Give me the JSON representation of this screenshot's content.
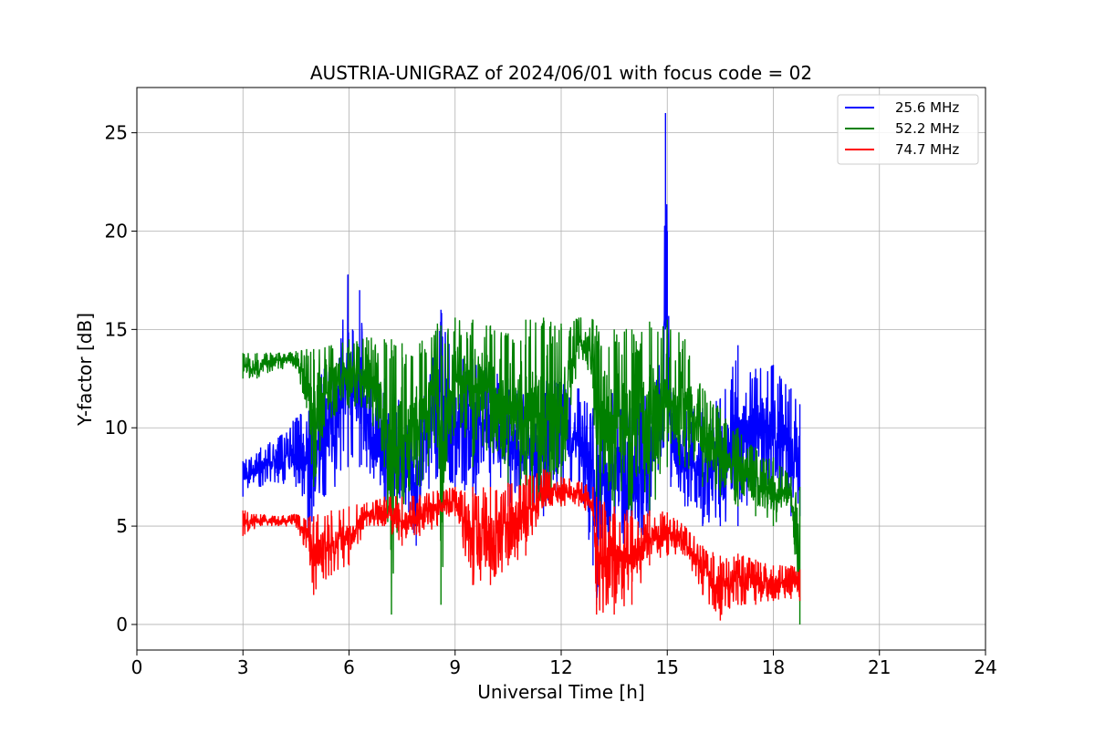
{
  "chart_data": {
    "type": "line",
    "title": "AUSTRIA-UNIGRAZ of 2024/06/01 with focus code = 02",
    "xlabel": "Universal Time [h]",
    "ylabel": "Y-factor [dB]",
    "xlim": [
      0,
      24
    ],
    "ylim": [
      -1.3,
      27.3
    ],
    "xticks": [
      0,
      3,
      6,
      9,
      12,
      15,
      18,
      21,
      24
    ],
    "yticks": [
      0,
      5,
      10,
      15,
      20,
      25
    ],
    "grid": true,
    "legend_position": "top-right",
    "series": [
      {
        "name": "25.6 MHz",
        "color": "#0000ff",
        "x": [
          3.0,
          3.5,
          4.0,
          4.5,
          4.9,
          5.0,
          5.3,
          5.6,
          5.97,
          6.1,
          6.3,
          6.5,
          7.0,
          7.5,
          7.9,
          8.0,
          8.5,
          8.6,
          9.0,
          9.5,
          10.0,
          10.5,
          11.0,
          11.5,
          12.0,
          12.5,
          12.9,
          13.0,
          13.5,
          14.0,
          14.5,
          14.9,
          14.95,
          15.0,
          15.1,
          15.5,
          16.0,
          16.5,
          17.0,
          17.5,
          18.0,
          18.5,
          18.75
        ],
        "low": [
          6.5,
          7.0,
          7.2,
          7.0,
          4.0,
          6.0,
          6.5,
          7.0,
          8.0,
          8.5,
          8.0,
          8.0,
          6.0,
          6.5,
          4.0,
          6.0,
          7.5,
          7.0,
          7.0,
          6.5,
          7.0,
          6.0,
          6.0,
          5.5,
          7.0,
          7.0,
          3.0,
          1.0,
          4.0,
          3.0,
          5.5,
          9.0,
          15.0,
          10.0,
          7.0,
          6.0,
          5.0,
          5.0,
          5.0,
          7.0,
          6.0,
          5.5,
          5.5
        ],
        "high": [
          8.3,
          9.0,
          9.5,
          10.5,
          11.5,
          12.0,
          13.0,
          13.0,
          17.8,
          15.0,
          17.0,
          13.0,
          12.5,
          12.0,
          11.0,
          11.0,
          15.0,
          16.0,
          14.0,
          13.5,
          13.0,
          12.5,
          12.0,
          12.5,
          12.5,
          12.0,
          11.0,
          10.5,
          12.0,
          11.0,
          12.0,
          14.0,
          26.0,
          20.0,
          12.0,
          11.0,
          11.0,
          11.5,
          14.2,
          13.0,
          13.2,
          12.0,
          11.2
        ]
      },
      {
        "name": "52.2 MHz",
        "color": "#008000",
        "x": [
          3.0,
          3.4,
          4.0,
          4.5,
          4.8,
          5.0,
          5.5,
          6.0,
          6.5,
          7.0,
          7.2,
          7.5,
          8.0,
          8.5,
          8.6,
          9.0,
          9.5,
          10.0,
          10.5,
          11.0,
          11.5,
          12.0,
          12.5,
          12.9,
          13.0,
          13.5,
          14.0,
          14.5,
          15.0,
          15.5,
          16.0,
          16.5,
          17.0,
          17.5,
          18.0,
          18.5,
          18.75
        ],
        "low": [
          12.5,
          12.5,
          13.0,
          13.0,
          11.0,
          7.0,
          10.5,
          11.0,
          11.0,
          8.0,
          0.5,
          5.0,
          7.0,
          9.0,
          1.0,
          10.0,
          8.0,
          9.0,
          7.0,
          6.0,
          6.0,
          6.0,
          13.5,
          12.0,
          5.0,
          6.0,
          5.5,
          5.5,
          8.0,
          8.0,
          7.0,
          6.5,
          6.0,
          5.5,
          5.0,
          6.0,
          0.0
        ],
        "high": [
          13.8,
          13.8,
          13.8,
          13.9,
          14.0,
          14.0,
          14.2,
          14.5,
          14.6,
          14.5,
          14.5,
          14.3,
          14.3,
          15.3,
          15.2,
          15.6,
          15.5,
          15.2,
          14.8,
          15.5,
          15.6,
          15.3,
          15.6,
          15.5,
          15.2,
          15.0,
          15.0,
          15.4,
          15.5,
          14.5,
          12.0,
          11.0,
          10.0,
          9.0,
          8.5,
          7.5,
          7.0
        ]
      },
      {
        "name": "74.7 MHz",
        "color": "#ff0000",
        "x": [
          3.0,
          3.5,
          4.0,
          4.5,
          4.9,
          5.0,
          5.5,
          6.0,
          6.5,
          7.0,
          7.5,
          8.0,
          8.5,
          9.0,
          9.5,
          10.0,
          10.5,
          11.0,
          11.5,
          12.0,
          12.5,
          12.9,
          13.0,
          13.5,
          14.0,
          14.5,
          15.0,
          15.5,
          16.0,
          16.5,
          17.0,
          17.5,
          18.0,
          18.5,
          18.75
        ],
        "low": [
          4.5,
          5.0,
          5.0,
          5.0,
          3.0,
          1.5,
          2.5,
          3.0,
          5.0,
          5.0,
          4.0,
          4.5,
          5.0,
          5.5,
          2.0,
          2.0,
          3.0,
          3.5,
          6.0,
          6.0,
          6.0,
          5.5,
          0.5,
          0.5,
          1.0,
          3.0,
          3.5,
          3.5,
          1.5,
          0.2,
          1.0,
          1.0,
          1.2,
          1.3,
          1.2
        ],
        "high": [
          5.8,
          5.6,
          5.5,
          5.6,
          5.5,
          5.5,
          5.8,
          6.0,
          6.2,
          6.5,
          6.5,
          6.6,
          6.8,
          7.0,
          7.0,
          7.0,
          7.2,
          7.6,
          7.9,
          7.5,
          7.3,
          7.0,
          6.5,
          6.0,
          5.8,
          5.8,
          5.7,
          5.0,
          4.0,
          3.5,
          3.6,
          3.3,
          3.0,
          3.0,
          2.8
        ]
      }
    ]
  }
}
